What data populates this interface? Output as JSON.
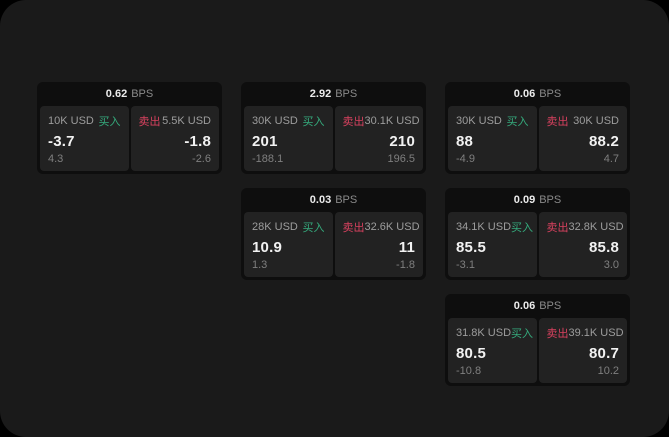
{
  "labels": {
    "bps_unit": "BPS",
    "buy": "买入",
    "sell": "卖出"
  },
  "colors": {
    "buy": "#35ab7d",
    "sell": "#d8415f",
    "page_background": "#1a1a1a",
    "card_background": "#0e0e0e",
    "panel_background": "#222222"
  },
  "cards": [
    {
      "bps": "0.62",
      "buy": {
        "amount": "10K USD",
        "price": "-3.7",
        "delta": "4.3"
      },
      "sell": {
        "amount": "5.5K USD",
        "price": "-1.8",
        "delta": "-2.6"
      }
    },
    {
      "bps": "2.92",
      "buy": {
        "amount": "30K USD",
        "price": "201",
        "delta": "-188.1"
      },
      "sell": {
        "amount": "30.1K USD",
        "price": "210",
        "delta": "196.5"
      }
    },
    {
      "bps": "0.06",
      "buy": {
        "amount": "30K USD",
        "price": "88",
        "delta": "-4.9"
      },
      "sell": {
        "amount": "30K USD",
        "price": "88.2",
        "delta": "4.7"
      }
    },
    {
      "bps": "0.03",
      "buy": {
        "amount": "28K USD",
        "price": "10.9",
        "delta": "1.3"
      },
      "sell": {
        "amount": "32.6K USD",
        "price": "11",
        "delta": "-1.8"
      }
    },
    {
      "bps": "0.09",
      "buy": {
        "amount": "34.1K USD",
        "price": "85.5",
        "delta": "-3.1"
      },
      "sell": {
        "amount": "32.8K USD",
        "price": "85.8",
        "delta": "3.0"
      }
    },
    {
      "bps": "0.06",
      "buy": {
        "amount": "31.8K USD",
        "price": "80.5",
        "delta": "-10.8"
      },
      "sell": {
        "amount": "39.1K USD",
        "price": "80.7",
        "delta": "10.2"
      }
    }
  ]
}
